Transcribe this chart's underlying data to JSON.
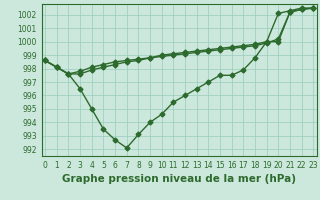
{
  "x": [
    0,
    1,
    2,
    3,
    4,
    5,
    6,
    7,
    8,
    9,
    10,
    11,
    12,
    13,
    14,
    15,
    16,
    17,
    18,
    19,
    20,
    21,
    22,
    23
  ],
  "line1": [
    998.6,
    998.1,
    997.6,
    996.5,
    995.0,
    993.5,
    992.7,
    992.1,
    993.1,
    994.0,
    994.6,
    995.5,
    996.0,
    996.5,
    997.0,
    997.5,
    997.5,
    997.9,
    998.8,
    1000.0,
    1002.1,
    1002.3,
    1002.5,
    1002.5
  ],
  "line2": [
    998.6,
    998.1,
    997.6,
    997.6,
    997.9,
    998.1,
    998.3,
    998.5,
    998.6,
    998.8,
    999.0,
    999.1,
    999.2,
    999.3,
    999.4,
    999.5,
    999.6,
    999.7,
    999.8,
    1000.0,
    1000.0,
    1002.2,
    1002.4,
    1002.5
  ],
  "line3": [
    998.6,
    998.1,
    997.6,
    997.8,
    998.1,
    998.3,
    998.5,
    998.6,
    998.7,
    998.8,
    998.9,
    999.0,
    999.1,
    999.2,
    999.3,
    999.4,
    999.5,
    999.6,
    999.7,
    999.9,
    1000.2,
    1002.2,
    1002.4,
    1002.5
  ],
  "line_color": "#2d6a2d",
  "bg_color": "#cce8dc",
  "grid_color": "#99ccbb",
  "xlabel": "Graphe pression niveau de la mer (hPa)",
  "ylim": [
    991.5,
    1002.8
  ],
  "xlim": [
    -0.3,
    23.3
  ],
  "yticks": [
    992,
    993,
    994,
    995,
    996,
    997,
    998,
    999,
    1000,
    1001,
    1002
  ],
  "xticks": [
    0,
    1,
    2,
    3,
    4,
    5,
    6,
    7,
    8,
    9,
    10,
    11,
    12,
    13,
    14,
    15,
    16,
    17,
    18,
    19,
    20,
    21,
    22,
    23
  ],
  "marker_size": 2.5,
  "line_width": 1.0,
  "xlabel_fontsize": 7.5,
  "tick_fontsize": 5.5
}
